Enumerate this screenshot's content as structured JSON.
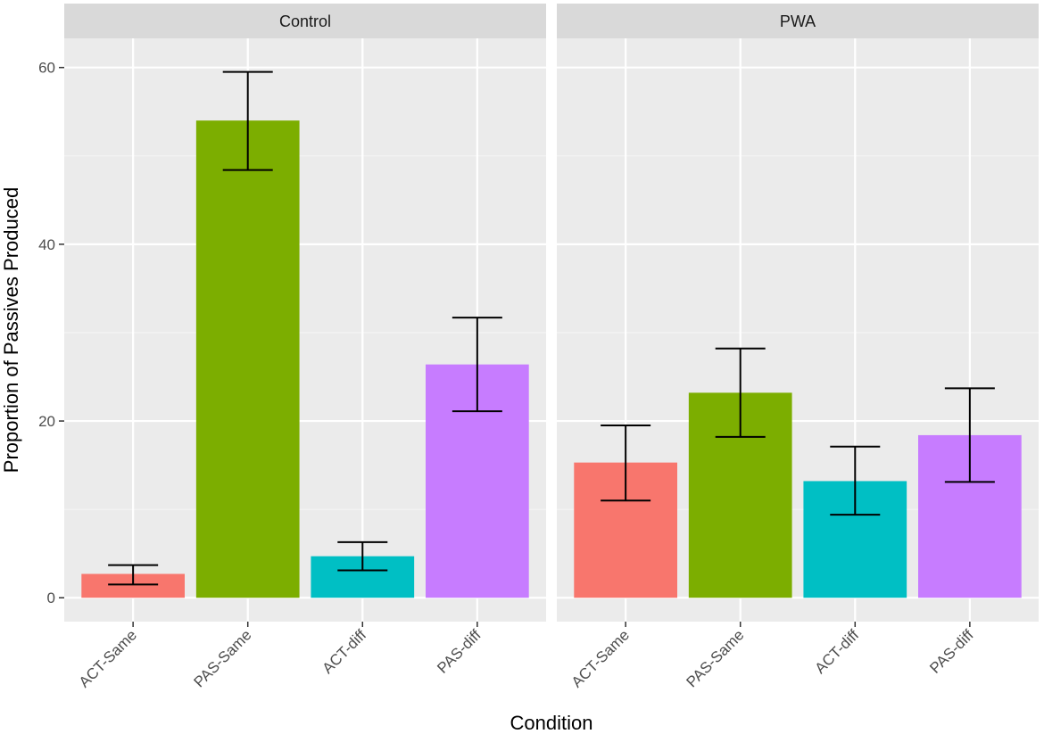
{
  "chart_data": {
    "type": "bar",
    "xlabel": "Condition",
    "ylabel": "Proportion of Passives Produced",
    "ylim": [
      -2.7,
      63.3
    ],
    "yticks": [
      0,
      20,
      40,
      60
    ],
    "categories": [
      "ACT-Same",
      "PAS-Same",
      "ACT-diff",
      "PAS-diff"
    ],
    "colors": [
      "#F8766D",
      "#7CAE00",
      "#00BFC4",
      "#C77CFF"
    ],
    "panels": [
      {
        "name": "Control",
        "values": [
          2.7,
          54.0,
          4.7,
          26.4
        ],
        "error_low": [
          1.5,
          48.4,
          3.1,
          21.1
        ],
        "error_high": [
          3.7,
          59.5,
          6.3,
          31.7
        ]
      },
      {
        "name": "PWA",
        "values": [
          15.3,
          23.2,
          13.2,
          18.4
        ],
        "error_low": [
          11.0,
          18.2,
          9.4,
          13.1
        ],
        "error_high": [
          19.5,
          28.2,
          17.1,
          23.7
        ]
      }
    ],
    "grid": true,
    "legend": "none"
  }
}
